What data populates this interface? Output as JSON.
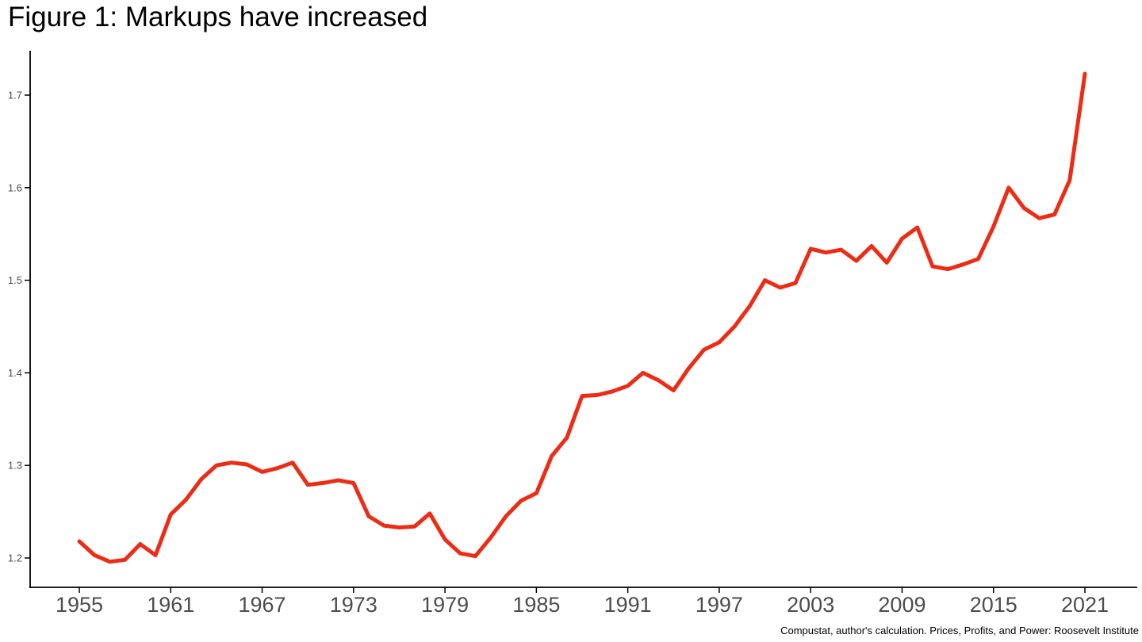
{
  "chart_data": {
    "type": "line",
    "title": "Figure 1: Markups have increased",
    "source": "Compustat, author's calculation. Prices, Profits, and Power: Roosevelt Institute",
    "xlabel": "",
    "ylabel": "",
    "grid": false,
    "legend": false,
    "line_color": "#ed2c16",
    "axis_color": "#000000",
    "tick_label_color": "#4d4d4d",
    "xlim": [
      1952,
      2024
    ],
    "ylim": [
      1.17,
      1.74
    ],
    "x_ticks": [
      "1955",
      "1961",
      "1967",
      "1973",
      "1979",
      "1985",
      "1991",
      "1997",
      "2003",
      "2009",
      "2015",
      "2021"
    ],
    "y_ticks": [
      "1.2",
      "1.3",
      "1.4",
      "1.5",
      "1.6",
      "1.7"
    ],
    "x": [
      1955,
      1956,
      1957,
      1958,
      1959,
      1960,
      1961,
      1962,
      1963,
      1964,
      1965,
      1966,
      1967,
      1968,
      1969,
      1970,
      1971,
      1972,
      1973,
      1974,
      1975,
      1976,
      1977,
      1978,
      1979,
      1980,
      1981,
      1982,
      1983,
      1984,
      1985,
      1986,
      1987,
      1988,
      1989,
      1990,
      1991,
      1992,
      1993,
      1994,
      1995,
      1996,
      1997,
      1998,
      1999,
      2000,
      2001,
      2002,
      2003,
      2004,
      2005,
      2006,
      2007,
      2008,
      2009,
      2010,
      2011,
      2012,
      2013,
      2014,
      2015,
      2016,
      2017,
      2018,
      2019,
      2020,
      2021
    ],
    "values": [
      1.218,
      1.203,
      1.196,
      1.198,
      1.215,
      1.203,
      1.247,
      1.263,
      1.285,
      1.3,
      1.303,
      1.301,
      1.293,
      1.297,
      1.303,
      1.279,
      1.281,
      1.284,
      1.281,
      1.245,
      1.235,
      1.233,
      1.234,
      1.248,
      1.22,
      1.205,
      1.202,
      1.222,
      1.245,
      1.262,
      1.27,
      1.31,
      1.33,
      1.375,
      1.376,
      1.38,
      1.386,
      1.4,
      1.392,
      1.381,
      1.405,
      1.425,
      1.433,
      1.45,
      1.472,
      1.5,
      1.492,
      1.497,
      1.534,
      1.53,
      1.533,
      1.521,
      1.537,
      1.519,
      1.545,
      1.557,
      1.515,
      1.512,
      1.517,
      1.523,
      1.558,
      1.6,
      1.578,
      1.567,
      1.571,
      1.608,
      1.723
    ]
  }
}
